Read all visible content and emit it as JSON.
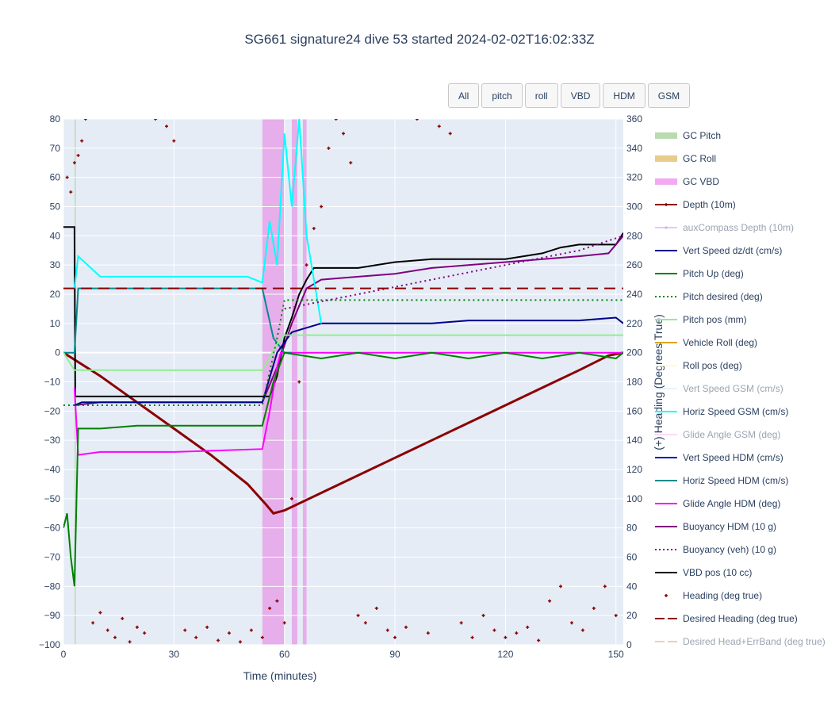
{
  "title": "SG661 signature24 dive 53 started 2024-02-02T16:02:33Z",
  "buttons": [
    {
      "label": "All",
      "name": "range-button-all"
    },
    {
      "label": "pitch",
      "name": "range-button-pitch"
    },
    {
      "label": "roll",
      "name": "range-button-roll"
    },
    {
      "label": "VBD",
      "name": "range-button-vbd"
    },
    {
      "label": "HDM",
      "name": "range-button-hdm"
    },
    {
      "label": "GSM",
      "name": "range-button-gsm"
    }
  ],
  "chart_data": {
    "type": "line",
    "xlabel": "Time (minutes)",
    "ylabel": "",
    "y2label": "(+) Heading (Degrees True)",
    "xlim": [
      0,
      152
    ],
    "ylim": [
      -100,
      80
    ],
    "y2lim": [
      0,
      360
    ],
    "x_ticks": [
      0,
      30,
      60,
      90,
      120,
      150
    ],
    "y_ticks": [
      80,
      70,
      60,
      50,
      40,
      30,
      20,
      10,
      0,
      -10,
      -20,
      -30,
      -40,
      -50,
      -60,
      -70,
      -80,
      -90,
      -100
    ],
    "y2_ticks": [
      360,
      340,
      320,
      300,
      280,
      260,
      240,
      220,
      200,
      180,
      160,
      140,
      120,
      100,
      80,
      60,
      40,
      20,
      0
    ],
    "grid": true,
    "legend_placement": "right",
    "legend": [
      {
        "name": "GC Pitch",
        "color": "#b8dcb0",
        "style": "band",
        "dim": false
      },
      {
        "name": "GC Roll",
        "color": "#e8cc8c",
        "style": "band",
        "dim": false
      },
      {
        "name": "GC VBD",
        "color": "#f3a8f3",
        "style": "band",
        "dim": false
      },
      {
        "name": "Depth (10m)",
        "color": "#8b0000",
        "style": "line-marker",
        "dim": false
      },
      {
        "name": "auxCompass Depth (10m)",
        "color": "#c994e6",
        "style": "line-marker",
        "dim": true
      },
      {
        "name": "Vert Speed dz/dt (cm/s)",
        "color": "#00008b",
        "style": "line",
        "dim": false
      },
      {
        "name": "Pitch Up (deg)",
        "color": "#008000",
        "style": "line",
        "dim": false
      },
      {
        "name": "Pitch desired (deg)",
        "color": "#008000",
        "style": "dot",
        "dim": false
      },
      {
        "name": "Pitch pos (mm)",
        "color": "#90ee90",
        "style": "line",
        "dim": false
      },
      {
        "name": "Vehicle Roll (deg)",
        "color": "#daa520",
        "style": "line",
        "dim": false
      },
      {
        "name": "Roll pos (deg)",
        "color": "#fffacd",
        "style": "line",
        "dim": false
      },
      {
        "name": "Vert Speed GSM (cm/s)",
        "color": "#cfe8ff",
        "style": "line",
        "dim": true
      },
      {
        "name": "Horiz Speed GSM (cm/s)",
        "color": "#00ffff",
        "style": "line",
        "dim": false
      },
      {
        "name": "Glide Angle GSM (deg)",
        "color": "#f5b8f5",
        "style": "line",
        "dim": true
      },
      {
        "name": "Vert Speed HDM (cm/s)",
        "color": "#0000cd",
        "style": "line",
        "dim": false
      },
      {
        "name": "Horiz Speed HDM (cm/s)",
        "color": "#008b8b",
        "style": "line",
        "dim": false
      },
      {
        "name": "Glide Angle HDM (deg)",
        "color": "#ff00ff",
        "style": "line",
        "dim": false
      },
      {
        "name": "Buoyancy HDM (10 g)",
        "color": "#800080",
        "style": "line",
        "dim": false
      },
      {
        "name": "Buoyancy (veh) (10 g)",
        "color": "#800080",
        "style": "dot",
        "dim": false
      },
      {
        "name": "VBD pos (10 cc)",
        "color": "#000000",
        "style": "line",
        "dim": false
      },
      {
        "name": "Heading (deg true)",
        "color": "#8b0000",
        "style": "marker",
        "dim": false
      },
      {
        "name": "Desired Heading (deg true)",
        "color": "#8b0000",
        "style": "dash",
        "dim": false
      },
      {
        "name": "Desired Head+ErrBand (deg true)",
        "color": "#e9967a",
        "style": "dash",
        "dim": true
      }
    ],
    "bands": [
      {
        "name": "GC VBD",
        "x": [
          54,
          60
        ],
        "color": "#e69ae6"
      },
      {
        "name": "GC VBD",
        "x": [
          62,
          63.5
        ],
        "color": "#e69ae6"
      },
      {
        "name": "GC VBD",
        "x": [
          65,
          66
        ],
        "color": "#e69ae6"
      },
      {
        "name": "GC Pitch",
        "x": [
          3,
          3.4
        ],
        "color": "#b8dcb0"
      }
    ],
    "series": [
      {
        "name": "Depth (10m)",
        "axis": "y",
        "color": "#8b0000",
        "x": [
          0,
          10,
          20,
          30,
          40,
          50,
          55,
          57,
          60,
          70,
          80,
          90,
          100,
          110,
          120,
          130,
          140,
          148,
          152
        ],
        "y": [
          0,
          -8,
          -17,
          -26,
          -35,
          -45,
          -52,
          -55,
          -54,
          -48,
          -42,
          -36,
          -30,
          -24,
          -18,
          -12,
          -6,
          -1,
          0
        ]
      },
      {
        "name": "VBD pos (10 cc)",
        "axis": "y",
        "color": "#000000",
        "x": [
          0,
          3,
          3.2,
          10,
          30,
          54,
          56,
          58,
          60,
          62,
          64,
          66,
          68,
          70,
          80,
          90,
          100,
          120,
          130,
          135,
          140,
          150,
          152
        ],
        "y": [
          43,
          43,
          -15,
          -15,
          -15,
          -15,
          -15,
          -8,
          5,
          12,
          20,
          25,
          29,
          29,
          29,
          31,
          32,
          32,
          34,
          36,
          37,
          37,
          41
        ]
      },
      {
        "name": "Buoyancy HDM (10 g)",
        "axis": "y",
        "color": "#800080",
        "x": [
          3,
          10,
          30,
          54,
          58,
          62,
          66,
          70,
          80,
          90,
          100,
          120,
          140,
          148,
          152
        ],
        "y": [
          -18,
          -17,
          -17,
          -17,
          -5,
          10,
          22,
          25,
          26,
          27,
          29,
          31,
          33,
          34,
          40
        ]
      },
      {
        "name": "Glide Angle HDM (deg)",
        "axis": "y",
        "color": "#ff00ff",
        "x": [
          3,
          4,
          10,
          30,
          54,
          56,
          58,
          59,
          60,
          80,
          100,
          120,
          150,
          152
        ],
        "y": [
          -12,
          -35,
          -34,
          -34,
          -33,
          -20,
          -5,
          0,
          0,
          0,
          0,
          0,
          0,
          0
        ]
      },
      {
        "name": "Horiz Speed HDM (cm/s)",
        "axis": "y",
        "color": "#008b8b",
        "x": [
          0,
          3,
          4,
          10,
          30,
          54,
          57,
          60,
          62
        ],
        "y": [
          0,
          0,
          22,
          22,
          22,
          22,
          5,
          0,
          0
        ]
      },
      {
        "name": "Pitch Up (deg)",
        "axis": "y",
        "color": "#008000",
        "x": [
          0,
          1,
          2,
          3,
          4,
          10,
          20,
          30,
          40,
          50,
          54,
          57,
          60,
          70,
          80,
          90,
          100,
          110,
          120,
          130,
          140,
          150,
          152
        ],
        "y": [
          -60,
          -55,
          -70,
          -80,
          -26,
          -26,
          -25,
          -25,
          -25,
          -25,
          -25,
          -10,
          0,
          -2,
          0,
          -2,
          0,
          -2,
          0,
          -2,
          0,
          -2,
          0
        ]
      },
      {
        "name": "Vert Speed dz/dt (cm/s)",
        "axis": "y",
        "color": "#00008b",
        "x": [
          3,
          5,
          10,
          20,
          30,
          40,
          50,
          54,
          58,
          62,
          70,
          80,
          90,
          100,
          110,
          120,
          130,
          140,
          150,
          152
        ],
        "y": [
          -18,
          -17,
          -17,
          -17,
          -17,
          -17,
          -17,
          -17,
          0,
          7,
          10,
          10,
          10,
          10,
          11,
          11,
          11,
          11,
          12,
          10
        ]
      },
      {
        "name": "Horiz Speed GSM (cm/s)",
        "axis": "y",
        "color": "#00ffff",
        "x": [
          3,
          4,
          10,
          20,
          30,
          40,
          50,
          54,
          56,
          58,
          60,
          62,
          64,
          66,
          70
        ],
        "y": [
          22,
          33,
          26,
          26,
          26,
          26,
          26,
          24,
          45,
          30,
          75,
          50,
          80,
          40,
          10
        ]
      },
      {
        "name": "Pitch pos (mm)",
        "axis": "y",
        "color": "#90ee90",
        "x": [
          0,
          3,
          10,
          30,
          54,
          58,
          60,
          152
        ],
        "y": [
          0,
          -6,
          -6,
          -6,
          -6,
          3,
          6,
          6
        ]
      },
      {
        "name": "Pitch desired (deg)",
        "axis": "y",
        "color": "#008000",
        "dash": "dot",
        "x": [
          0,
          54,
          58,
          60,
          152
        ],
        "y": [
          -18,
          -18,
          5,
          18,
          18
        ]
      },
      {
        "name": "Buoyancy (veh) (10 g)",
        "axis": "y",
        "color": "#800080",
        "dash": "dot",
        "x": [
          60,
          80,
          100,
          120,
          140,
          152
        ],
        "y": [
          15,
          20,
          25,
          30,
          35,
          40
        ]
      },
      {
        "name": "Desired Heading (deg true)",
        "axis": "y2",
        "color": "#8b0000",
        "dash": "dash",
        "x": [
          0,
          152
        ],
        "y": [
          244,
          244
        ]
      }
    ],
    "heading_markers": {
      "name": "Heading (deg true)",
      "axis": "y2",
      "color": "#8b0000",
      "x": [
        1,
        2,
        3,
        4,
        5,
        6,
        8,
        10,
        12,
        14,
        16,
        18,
        20,
        22,
        25,
        28,
        30,
        33,
        36,
        39,
        42,
        45,
        48,
        51,
        54,
        56,
        58,
        60,
        62,
        64,
        66,
        68,
        70,
        72,
        74,
        76,
        78,
        80,
        82,
        85,
        88,
        90,
        93,
        96,
        99,
        102,
        105,
        108,
        111,
        114,
        117,
        120,
        123,
        126,
        129,
        132,
        135,
        138,
        141,
        144,
        147,
        150
      ],
      "y": [
        320,
        310,
        330,
        335,
        345,
        360,
        15,
        22,
        10,
        5,
        18,
        2,
        12,
        8,
        360,
        355,
        345,
        10,
        5,
        12,
        3,
        8,
        2,
        10,
        5,
        25,
        30,
        15,
        100,
        180,
        260,
        285,
        300,
        340,
        360,
        350,
        330,
        20,
        15,
        25,
        10,
        5,
        12,
        360,
        8,
        355,
        350,
        15,
        5,
        20,
        10,
        5,
        8,
        12,
        3,
        30,
        40,
        15,
        10,
        25,
        40,
        20
      ]
    }
  }
}
